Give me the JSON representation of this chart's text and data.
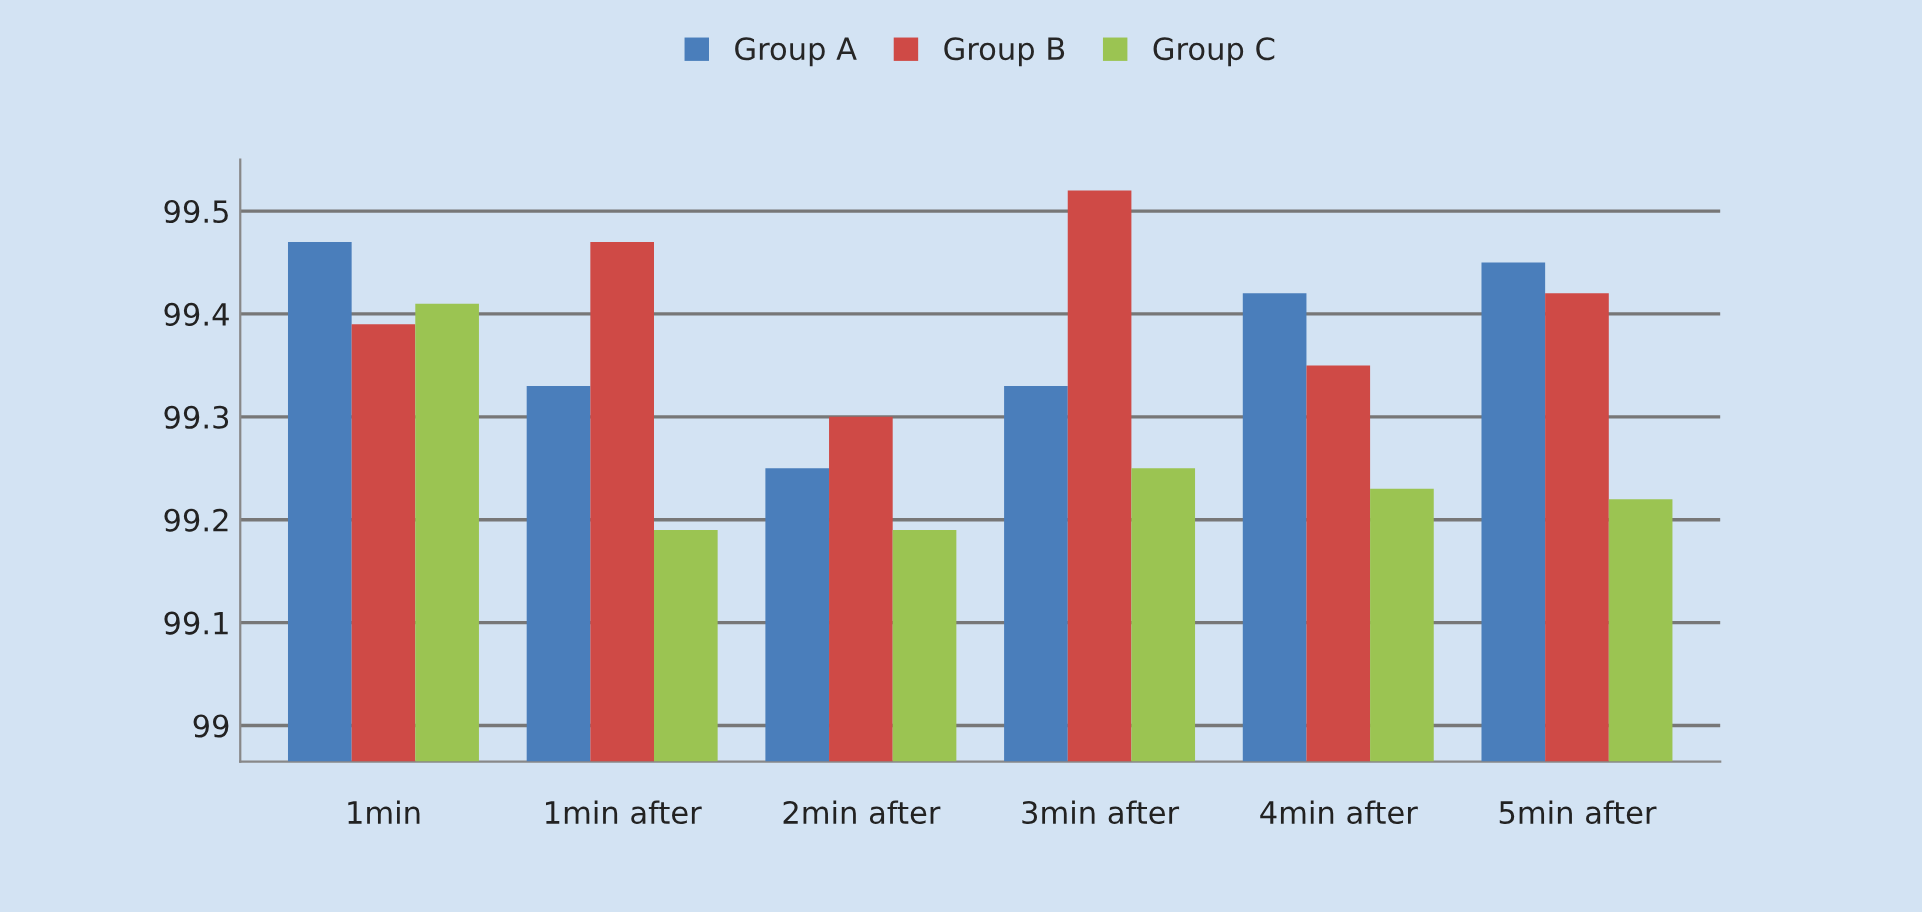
{
  "chart_data": {
    "type": "bar",
    "categories": [
      "1min",
      "1min after",
      "2min after",
      "3min after",
      "4min after",
      "5min after"
    ],
    "series": [
      {
        "name": "Group A",
        "color": "#4a7ebb",
        "values": [
          99.47,
          99.33,
          99.25,
          99.33,
          99.42,
          99.45
        ]
      },
      {
        "name": "Group B",
        "color": "#cf4a46",
        "values": [
          99.39,
          99.47,
          99.3,
          99.52,
          99.35,
          99.42
        ]
      },
      {
        "name": "Group C",
        "color": "#9bc452",
        "values": [
          99.41,
          99.19,
          99.19,
          99.25,
          99.23,
          99.22
        ]
      }
    ],
    "ylim": [
      98.965,
      99.55
    ],
    "yticks": [
      {
        "value": 99,
        "label": "99"
      },
      99.1,
      99.2,
      99.3,
      99.4,
      99.5
    ],
    "grid": "y",
    "legend": "top"
  }
}
